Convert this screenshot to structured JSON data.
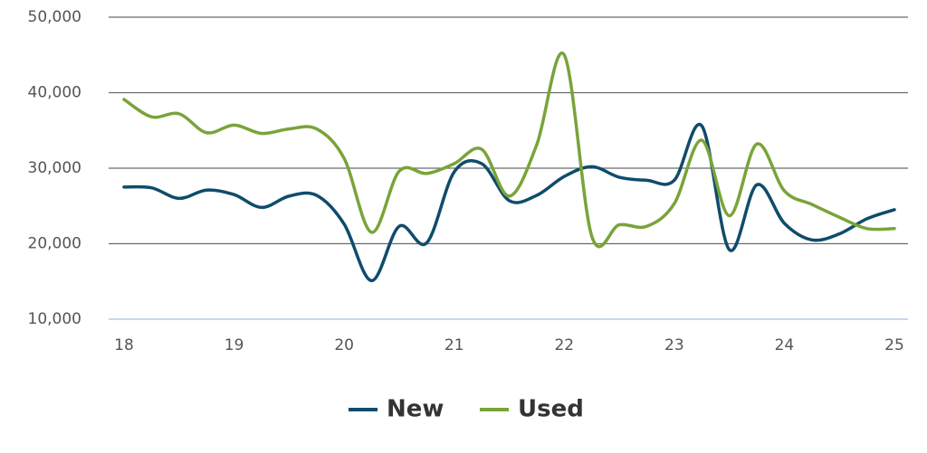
{
  "chart_data": {
    "type": "line",
    "x": [
      18,
      18.25,
      18.5,
      18.75,
      19,
      19.25,
      19.5,
      19.75,
      20,
      20.25,
      20.5,
      20.75,
      21,
      21.25,
      21.5,
      21.75,
      22,
      22.25,
      22.5,
      22.75,
      23,
      23.25,
      23.5,
      23.75,
      24,
      24.25,
      24.5,
      24.75,
      25
    ],
    "series": [
      {
        "name": "New",
        "color": "#0f4c6b",
        "values": [
          27500,
          27400,
          26000,
          27100,
          26500,
          24800,
          26300,
          26400,
          22600,
          15100,
          22300,
          20100,
          29500,
          30600,
          25700,
          26400,
          28900,
          30200,
          28800,
          28400,
          28400,
          35600,
          19200,
          27800,
          22700,
          20500,
          21300,
          23300,
          24500
        ]
      },
      {
        "name": "Used",
        "color": "#7aa33a",
        "values": [
          39100,
          36800,
          37200,
          34700,
          35700,
          34600,
          35200,
          35200,
          31300,
          21500,
          29600,
          29300,
          30600,
          32500,
          26300,
          33100,
          45000,
          21000,
          22500,
          22300,
          25300,
          33700,
          23700,
          33200,
          27000,
          25200,
          23500,
          22000,
          22000
        ]
      }
    ],
    "xlim": [
      18,
      25
    ],
    "xticks": [
      18,
      19,
      20,
      21,
      22,
      23,
      24,
      25
    ],
    "ylim": [
      10000,
      50000
    ],
    "yticks": [
      {
        "value": 10000,
        "label": "10,000"
      },
      {
        "value": 20000,
        "label": "20,000"
      },
      {
        "value": 30000,
        "label": "30,000"
      },
      {
        "value": 40000,
        "label": "40,000"
      },
      {
        "value": 50000,
        "label": "50,000"
      }
    ],
    "grid": true,
    "legend": "bottom"
  }
}
